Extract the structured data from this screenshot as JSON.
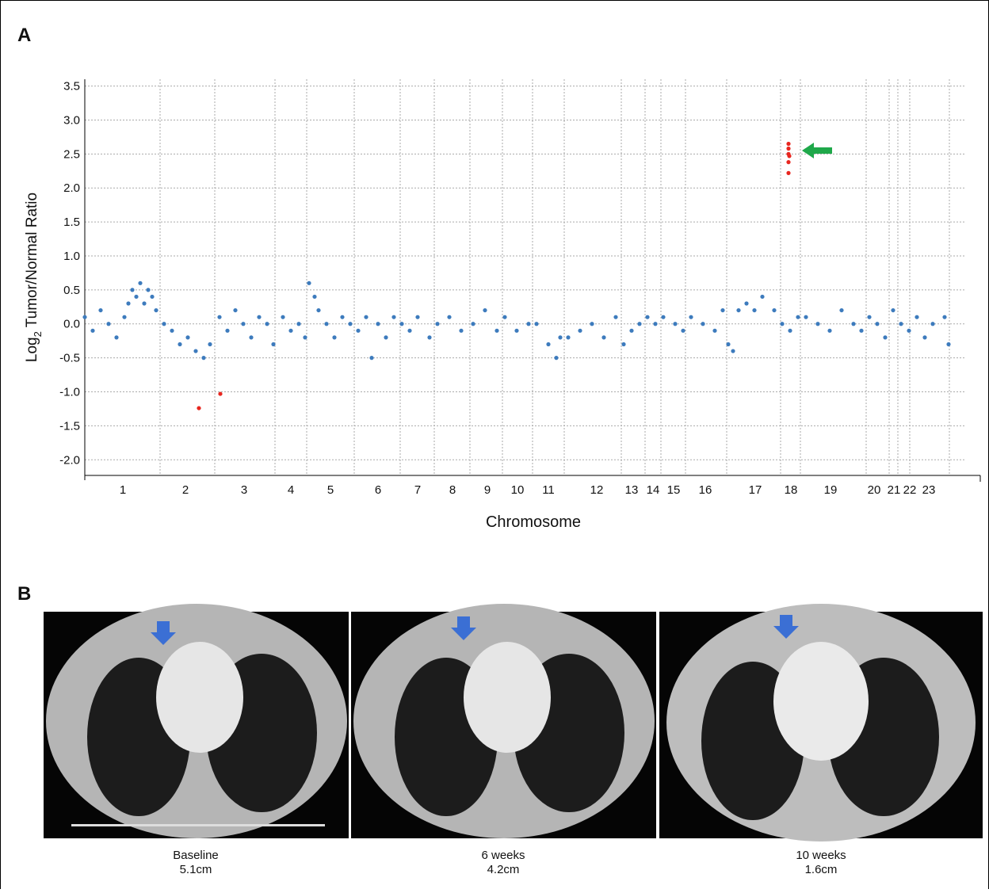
{
  "panel_labels": [
    "A",
    "B"
  ],
  "chart_data": {
    "type": "scatter",
    "ylabel_main": "Log",
    "ylabel_sub": "2",
    "ylabel_rest": " Tumor/Normal Ratio",
    "xlabel": "Chromosome",
    "xlim": [
      0,
      1130
    ],
    "xticks": [
      {
        "value": 48,
        "label": "1"
      },
      {
        "value": 127,
        "label": "2"
      },
      {
        "value": 201,
        "label": "3"
      },
      {
        "value": 260,
        "label": "4"
      },
      {
        "value": 310,
        "label": "5"
      },
      {
        "value": 370,
        "label": "6"
      },
      {
        "value": 420,
        "label": "7"
      },
      {
        "value": 464,
        "label": "8"
      },
      {
        "value": 508,
        "label": "9"
      },
      {
        "value": 546,
        "label": "10"
      },
      {
        "value": 585,
        "label": "11"
      },
      {
        "value": 646,
        "label": "12"
      },
      {
        "value": 690,
        "label": "13"
      },
      {
        "value": 717,
        "label": "14"
      },
      {
        "value": 743,
        "label": "15"
      },
      {
        "value": 783,
        "label": "16"
      },
      {
        "value": 846,
        "label": "17"
      },
      {
        "value": 891,
        "label": "18"
      },
      {
        "value": 941,
        "label": "19"
      },
      {
        "value": 996,
        "label": "20"
      },
      {
        "value": 1021,
        "label": "21"
      },
      {
        "value": 1041,
        "label": "22"
      },
      {
        "value": 1065,
        "label": "23"
      }
    ],
    "xgrid": [
      95,
      164,
      240,
      280,
      340,
      398,
      441,
      486,
      527,
      565,
      605,
      677,
      707,
      727,
      758,
      810,
      878,
      903,
      986,
      1015,
      1026,
      1041,
      1091
    ],
    "ylim": [
      -2.23,
      3.6
    ],
    "yticks": [
      {
        "value": -2,
        "label": "-2.0"
      },
      -1.5,
      {
        "value": -1,
        "label": "-1.0"
      },
      -0.5,
      {
        "value": 0,
        "label": "0.0"
      },
      0.5,
      {
        "value": 1,
        "label": "1.0"
      },
      1.5,
      {
        "value": 2,
        "label": "2.0"
      },
      2.5,
      {
        "value": 3,
        "label": "3.0"
      },
      3.5
    ],
    "grid": true,
    "series": [
      {
        "color": "#3d7bbd",
        "x": [
          0,
          10,
          20,
          30,
          40,
          50,
          55,
          60,
          65,
          70,
          75,
          80,
          85,
          90,
          100,
          110,
          120,
          130,
          140,
          150,
          158,
          170,
          180,
          190,
          200,
          210,
          220,
          230,
          238,
          250,
          260,
          270,
          278,
          283,
          290,
          295,
          305,
          315,
          325,
          335,
          345,
          355,
          362,
          370,
          380,
          390,
          400,
          410,
          420,
          435,
          445,
          460,
          475,
          490,
          505,
          520,
          530,
          545,
          560,
          570,
          585,
          595,
          600,
          610,
          625,
          640,
          655,
          670,
          680,
          690,
          700,
          710,
          720,
          730,
          745,
          755,
          765,
          780,
          795,
          805,
          812,
          818,
          825,
          835,
          845,
          855,
          870,
          880,
          890,
          900,
          910,
          925,
          940,
          955,
          970,
          980,
          990,
          1000,
          1010,
          1020,
          1030,
          1040,
          1050,
          1060,
          1070,
          1085,
          1090
        ],
        "values": [
          0.1,
          -0.1,
          0.2,
          0.0,
          -0.2,
          0.1,
          0.3,
          0.5,
          0.4,
          0.6,
          0.3,
          0.5,
          0.4,
          0.2,
          0.0,
          -0.1,
          -0.3,
          -0.2,
          -0.4,
          -0.5,
          -0.3,
          0.1,
          -0.1,
          0.2,
          0.0,
          -0.2,
          0.1,
          0.0,
          -0.3,
          0.1,
          -0.1,
          0.0,
          -0.2,
          0.6,
          0.4,
          0.2,
          0.0,
          -0.2,
          0.1,
          0.0,
          -0.1,
          0.1,
          -0.5,
          0.0,
          -0.2,
          0.1,
          0.0,
          -0.1,
          0.1,
          -0.2,
          0.0,
          0.1,
          -0.1,
          0.0,
          0.2,
          -0.1,
          0.1,
          -0.1,
          0.0,
          0.0,
          -0.3,
          -0.5,
          -0.2,
          -0.2,
          -0.1,
          0.0,
          -0.2,
          0.1,
          -0.3,
          -0.1,
          0.0,
          0.1,
          0.0,
          0.1,
          0.0,
          -0.1,
          0.1,
          0.0,
          -0.1,
          0.2,
          -0.3,
          -0.4,
          0.2,
          0.3,
          0.2,
          0.4,
          0.2,
          0.0,
          -0.1,
          0.1,
          0.1,
          0.0,
          -0.1,
          0.2,
          0.0,
          -0.1,
          0.1,
          0.0,
          -0.2,
          0.2,
          0.0,
          -0.1,
          0.1,
          -0.2,
          0.0,
          0.1,
          -0.3
        ]
      },
      {
        "color": "#e8261f",
        "x": [
          144,
          171,
          888,
          888,
          888,
          889,
          888,
          888
        ],
        "values": [
          -1.24,
          -1.03,
          2.65,
          2.58,
          2.5,
          2.47,
          2.38,
          2.22
        ]
      }
    ]
  },
  "images": [
    {
      "caption": "Baseline",
      "size": "5.1cm"
    },
    {
      "caption": "6 weeks",
      "size": "4.2cm"
    },
    {
      "caption": "10 weeks",
      "size": "1.6cm"
    }
  ]
}
